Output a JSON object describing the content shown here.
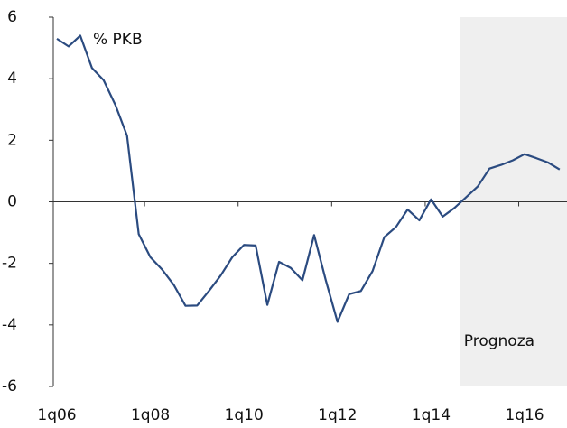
{
  "chart_data": {
    "type": "line",
    "y_label": "% PKB",
    "categories": [
      "1q06",
      null,
      null,
      null,
      null,
      null,
      null,
      null,
      "1q08",
      null,
      null,
      null,
      null,
      null,
      null,
      null,
      "1q10",
      null,
      null,
      null,
      null,
      null,
      null,
      null,
      "1q12",
      null,
      null,
      null,
      null,
      null,
      null,
      null,
      "1q14",
      null,
      null,
      null,
      null,
      null,
      null,
      null,
      "1q16",
      null,
      null,
      null
    ],
    "series": [
      {
        "name": "% PKB",
        "color": "#2b4b80",
        "values": [
          5.3,
          5.05,
          5.4,
          4.35,
          3.95,
          3.15,
          2.15,
          -1.05,
          -1.8,
          -2.2,
          -2.7,
          -3.38,
          -3.37,
          -2.9,
          -2.4,
          -1.8,
          -1.4,
          -1.42,
          -3.35,
          -1.95,
          -2.15,
          -2.55,
          -1.08,
          -2.55,
          -3.9,
          -3.0,
          -2.9,
          -2.25,
          -1.15,
          -0.82,
          -0.25,
          -0.6,
          0.08,
          -0.48,
          -0.2,
          0.15,
          0.5,
          1.08,
          1.2,
          1.35,
          1.55,
          1.42,
          1.28,
          1.05
        ]
      }
    ],
    "ylim": [
      -6,
      6
    ],
    "yticks": [
      -6,
      -4,
      -2,
      0,
      2,
      4,
      6
    ],
    "shaded_region": {
      "label": "Prognoza",
      "from": 34.5,
      "color": "#efefef"
    }
  }
}
